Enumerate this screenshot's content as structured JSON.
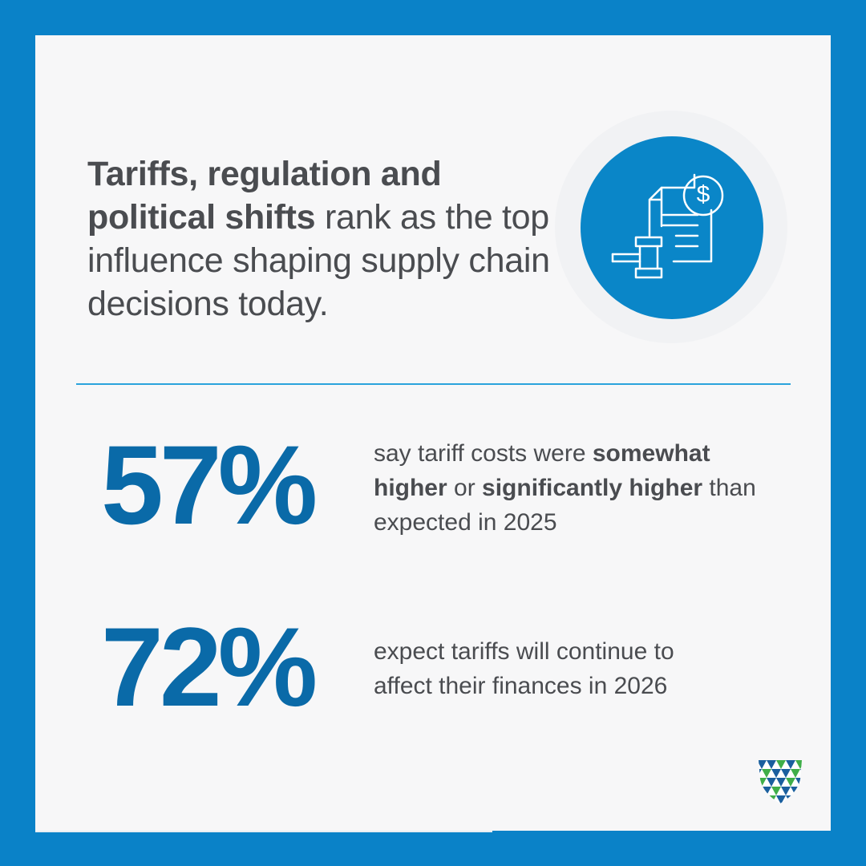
{
  "colors": {
    "frame": "#0a82c8",
    "panel": "#f7f7f8",
    "accent": "#0a6aa8",
    "icon_circle": "#0a86c8",
    "divider": "#2aa3dc",
    "text": "#4a4c50",
    "logo_blue": "#1a5f9e",
    "logo_green": "#3fae49"
  },
  "headline": {
    "bold": "Tariffs, regulation and political shifts",
    "rest": " rank as the top influence shaping supply chain decisions today."
  },
  "icon": {
    "name": "tariff-document-gavel-icon",
    "symbol": "$"
  },
  "stats": [
    {
      "value": "57%",
      "text_1": "say tariff costs were ",
      "bold_1": "somewhat higher",
      "text_2": " or ",
      "bold_2": "significantly higher",
      "text_3": " than expected in 2025"
    },
    {
      "value": "72%",
      "text_1": "expect tariffs will continue to affect their finances in 2026"
    }
  ],
  "logo": {
    "name": "shield-logo-icon"
  }
}
